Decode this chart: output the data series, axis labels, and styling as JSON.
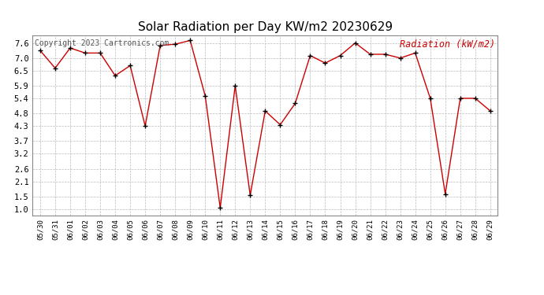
{
  "title": "Solar Radiation per Day KW/m2 20230629",
  "copyright_text": "Copyright 2023 Cartronics.com",
  "legend_label": "Radiation (kW/m2)",
  "dates": [
    "05/30",
    "05/31",
    "06/01",
    "06/02",
    "06/03",
    "06/04",
    "06/05",
    "06/06",
    "06/07",
    "06/08",
    "06/09",
    "06/10",
    "06/11",
    "06/12",
    "06/13",
    "06/14",
    "06/15",
    "06/16",
    "06/17",
    "06/18",
    "06/19",
    "06/20",
    "06/21",
    "06/22",
    "06/23",
    "06/24",
    "06/25",
    "06/26",
    "06/27",
    "06/28",
    "06/29"
  ],
  "values": [
    7.3,
    6.6,
    7.4,
    7.2,
    7.2,
    6.3,
    6.7,
    4.3,
    7.5,
    7.55,
    7.7,
    5.5,
    1.05,
    5.9,
    1.55,
    4.9,
    4.35,
    5.2,
    7.1,
    6.8,
    7.1,
    7.6,
    7.15,
    7.15,
    7.0,
    7.2,
    5.4,
    1.6,
    5.4,
    5.4,
    4.9
  ],
  "line_color": "#cc0000",
  "marker_color": "#000000",
  "background_color": "#ffffff",
  "grid_color": "#bbbbbb",
  "title_fontsize": 11,
  "copyright_fontsize": 7,
  "legend_fontsize": 8.5,
  "yticks": [
    1.0,
    1.5,
    2.1,
    2.6,
    3.2,
    3.7,
    4.3,
    4.8,
    5.4,
    5.9,
    6.5,
    7.0,
    7.6
  ],
  "ylim": [
    0.75,
    7.9
  ],
  "xtick_fontsize": 6.5,
  "ytick_fontsize": 7.5
}
